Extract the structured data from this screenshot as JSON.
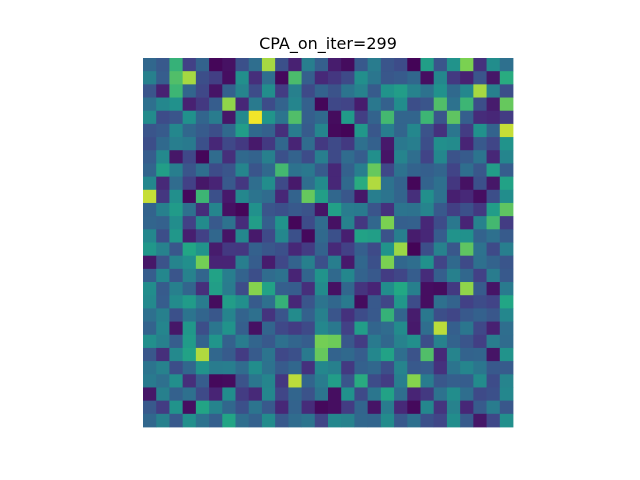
{
  "chart_data": {
    "type": "heatmap",
    "title": "CPA_on_iter=299",
    "colormap": "viridis",
    "rows": 28,
    "cols": 28,
    "axes_visible": false,
    "value_range": [
      0,
      1
    ],
    "values": [
      [
        0.42,
        0.35,
        0.78,
        0.24,
        0.4,
        0.02,
        0.06,
        0.31,
        0.45,
        0.92,
        0.31,
        0.12,
        0.53,
        0.38,
        0.1,
        0.04,
        0.35,
        0.52,
        0.33,
        0.29,
        0.01,
        0.7,
        0.33,
        0.64,
        0.88,
        0.18,
        0.61,
        0.46
      ],
      [
        0.54,
        0.37,
        0.82,
        0.92,
        0.3,
        0.23,
        0.05,
        0.62,
        0.17,
        0.45,
        0.03,
        0.81,
        0.38,
        0.15,
        0.2,
        0.28,
        0.62,
        0.49,
        0.34,
        0.36,
        0.42,
        0.05,
        0.58,
        0.21,
        0.12,
        0.33,
        0.08,
        0.76
      ],
      [
        0.33,
        0.12,
        0.79,
        0.41,
        0.27,
        0.07,
        0.39,
        0.56,
        0.29,
        0.61,
        0.22,
        0.54,
        0.28,
        0.4,
        0.32,
        0.48,
        0.55,
        0.36,
        0.64,
        0.69,
        0.55,
        0.47,
        0.63,
        0.43,
        0.58,
        0.92,
        0.54,
        0.3
      ],
      [
        0.46,
        0.58,
        0.63,
        0.12,
        0.21,
        0.37,
        0.9,
        0.14,
        0.51,
        0.29,
        0.4,
        0.57,
        0.39,
        0.02,
        0.27,
        0.25,
        0.1,
        0.5,
        0.39,
        0.61,
        0.3,
        0.33,
        0.82,
        0.47,
        0.79,
        0.3,
        0.1,
        0.85
      ],
      [
        0.6,
        0.29,
        0.33,
        0.63,
        0.41,
        0.52,
        0.08,
        0.59,
        0.99,
        0.65,
        0.48,
        0.82,
        0.38,
        0.43,
        0.04,
        0.68,
        0.23,
        0.4,
        0.8,
        0.41,
        0.41,
        0.79,
        0.33,
        0.84,
        0.38,
        0.16,
        0.14,
        0.22
      ],
      [
        0.33,
        0.36,
        0.58,
        0.42,
        0.36,
        0.3,
        0.43,
        0.69,
        0.43,
        0.39,
        0.17,
        0.52,
        0.36,
        0.57,
        0.03,
        0.01,
        0.66,
        0.34,
        0.53,
        0.41,
        0.58,
        0.32,
        0.18,
        0.49,
        0.22,
        0.63,
        0.4,
        0.95
      ],
      [
        0.3,
        0.43,
        0.53,
        0.51,
        0.31,
        0.14,
        0.27,
        0.21,
        0.09,
        0.21,
        0.42,
        0.13,
        0.44,
        0.21,
        0.28,
        0.21,
        0.46,
        0.39,
        0.09,
        0.5,
        0.53,
        0.3,
        0.62,
        0.6,
        0.13,
        0.35,
        0.26,
        0.64
      ],
      [
        0.37,
        0.59,
        0.08,
        0.27,
        0.02,
        0.44,
        0.17,
        0.43,
        0.4,
        0.54,
        0.31,
        0.4,
        0.29,
        0.53,
        0.28,
        0.44,
        0.37,
        0.62,
        0.07,
        0.56,
        0.45,
        0.25,
        0.58,
        0.32,
        0.36,
        0.48,
        0.14,
        0.57
      ],
      [
        0.41,
        0.7,
        0.53,
        0.33,
        0.45,
        0.29,
        0.33,
        0.57,
        0.33,
        0.43,
        0.8,
        0.47,
        0.5,
        0.36,
        0.14,
        0.39,
        0.53,
        0.85,
        0.27,
        0.47,
        0.4,
        0.38,
        0.41,
        0.25,
        0.45,
        0.34,
        0.69,
        0.37
      ],
      [
        0.58,
        0.15,
        0.44,
        0.24,
        0.08,
        0.13,
        0.35,
        0.2,
        0.45,
        0.61,
        0.28,
        0.09,
        0.45,
        0.6,
        0.14,
        0.43,
        0.76,
        0.93,
        0.47,
        0.4,
        0.02,
        0.4,
        0.46,
        0.2,
        0.06,
        0.31,
        0.08,
        0.72
      ],
      [
        0.95,
        0.2,
        0.62,
        0.03,
        0.79,
        0.31,
        0.09,
        0.58,
        0.48,
        0.44,
        0.14,
        0.4,
        0.85,
        0.7,
        0.42,
        0.34,
        0.08,
        0.53,
        0.48,
        0.41,
        0.17,
        0.62,
        0.47,
        0.11,
        0.15,
        0.05,
        0.3,
        0.61
      ],
      [
        0.4,
        0.54,
        0.68,
        0.46,
        0.16,
        0.57,
        0.06,
        0.02,
        0.63,
        0.33,
        0.31,
        0.35,
        0.32,
        0.07,
        0.71,
        0.52,
        0.51,
        0.33,
        0.18,
        0.48,
        0.47,
        0.56,
        0.35,
        0.23,
        0.31,
        0.21,
        0.69,
        0.84
      ],
      [
        0.41,
        0.39,
        0.61,
        0.24,
        0.6,
        0.35,
        0.47,
        0.16,
        0.69,
        0.38,
        0.64,
        0.02,
        0.29,
        0.44,
        0.06,
        0.55,
        0.2,
        0.42,
        0.88,
        0.38,
        0.39,
        0.14,
        0.29,
        0.5,
        0.13,
        0.55,
        0.8,
        0.22
      ],
      [
        0.58,
        0.3,
        0.66,
        0.11,
        0.24,
        0.42,
        0.07,
        0.58,
        0.09,
        0.28,
        0.58,
        0.31,
        0.03,
        0.43,
        0.31,
        0.11,
        0.72,
        0.7,
        0.32,
        0.53,
        0.1,
        0.14,
        0.37,
        0.64,
        0.63,
        0.4,
        0.46,
        0.36
      ],
      [
        0.66,
        0.55,
        0.34,
        0.74,
        0.64,
        0.1,
        0.21,
        0.2,
        0.39,
        0.34,
        0.31,
        0.14,
        0.22,
        0.4,
        0.15,
        0.24,
        0.38,
        0.28,
        0.64,
        0.91,
        0.01,
        0.3,
        0.55,
        0.34,
        0.84,
        0.47,
        0.28,
        0.53
      ],
      [
        0.08,
        0.32,
        0.56,
        0.62,
        0.87,
        0.13,
        0.13,
        0.53,
        0.37,
        0.1,
        0.27,
        0.4,
        0.54,
        0.31,
        0.53,
        0.09,
        0.42,
        0.31,
        0.88,
        0.42,
        0.45,
        0.63,
        0.25,
        0.43,
        0.28,
        0.46,
        0.4,
        0.33
      ],
      [
        0.37,
        0.58,
        0.33,
        0.55,
        0.41,
        0.72,
        0.53,
        0.4,
        0.3,
        0.44,
        0.47,
        0.13,
        0.41,
        0.64,
        0.43,
        0.58,
        0.4,
        0.35,
        0.22,
        0.26,
        0.37,
        0.16,
        0.38,
        0.54,
        0.42,
        0.24,
        0.52,
        0.35
      ],
      [
        0.61,
        0.36,
        0.54,
        0.41,
        0.17,
        0.7,
        0.52,
        0.29,
        0.89,
        0.72,
        0.38,
        0.37,
        0.17,
        0.6,
        0.06,
        0.42,
        0.19,
        0.13,
        0.61,
        0.75,
        0.54,
        0.05,
        0.04,
        0.21,
        0.9,
        0.36,
        0.07,
        0.51
      ],
      [
        0.59,
        0.37,
        0.6,
        0.68,
        0.52,
        0.04,
        0.69,
        0.62,
        0.36,
        0.46,
        0.78,
        0.14,
        0.33,
        0.48,
        0.42,
        0.51,
        0.04,
        0.35,
        0.26,
        0.66,
        0.29,
        0.05,
        0.46,
        0.4,
        0.24,
        0.29,
        0.25,
        0.74
      ],
      [
        0.46,
        0.54,
        0.31,
        0.48,
        0.41,
        0.34,
        0.56,
        0.4,
        0.46,
        0.19,
        0.33,
        0.6,
        0.39,
        0.54,
        0.33,
        0.18,
        0.29,
        0.35,
        0.78,
        0.41,
        0.1,
        0.5,
        0.3,
        0.26,
        0.35,
        0.39,
        0.34,
        0.58
      ],
      [
        0.4,
        0.57,
        0.08,
        0.66,
        0.3,
        0.49,
        0.64,
        0.38,
        0.06,
        0.41,
        0.27,
        0.22,
        0.28,
        0.58,
        0.5,
        0.24,
        0.69,
        0.41,
        0.44,
        0.6,
        0.09,
        0.45,
        0.94,
        0.38,
        0.49,
        0.27,
        0.12,
        0.45
      ],
      [
        0.62,
        0.54,
        0.37,
        0.68,
        0.4,
        0.65,
        0.39,
        0.52,
        0.41,
        0.35,
        0.46,
        0.41,
        0.37,
        0.87,
        0.86,
        0.34,
        0.22,
        0.51,
        0.42,
        0.55,
        0.62,
        0.3,
        0.55,
        0.4,
        0.33,
        0.23,
        0.52,
        0.44
      ],
      [
        0.34,
        0.17,
        0.59,
        0.72,
        0.93,
        0.42,
        0.36,
        0.22,
        0.36,
        0.48,
        0.27,
        0.31,
        0.51,
        0.85,
        0.4,
        0.43,
        0.37,
        0.58,
        0.72,
        0.45,
        0.32,
        0.82,
        0.15,
        0.56,
        0.4,
        0.41,
        0.07,
        0.64
      ],
      [
        0.48,
        0.55,
        0.3,
        0.42,
        0.64,
        0.52,
        0.53,
        0.44,
        0.61,
        0.47,
        0.36,
        0.42,
        0.18,
        0.58,
        0.54,
        0.21,
        0.39,
        0.42,
        0.3,
        0.56,
        0.35,
        0.37,
        0.18,
        0.48,
        0.57,
        0.49,
        0.35,
        0.36
      ],
      [
        0.51,
        0.46,
        0.62,
        0.17,
        0.37,
        0.03,
        0.04,
        0.32,
        0.49,
        0.57,
        0.2,
        0.94,
        0.41,
        0.52,
        0.69,
        0.33,
        0.76,
        0.29,
        0.22,
        0.53,
        0.89,
        0.52,
        0.34,
        0.38,
        0.37,
        0.6,
        0.29,
        0.56
      ],
      [
        0.08,
        0.54,
        0.39,
        0.46,
        0.28,
        0.13,
        0.61,
        0.22,
        0.15,
        0.58,
        0.26,
        0.41,
        0.32,
        0.48,
        0.05,
        0.63,
        0.28,
        0.49,
        0.72,
        0.45,
        0.13,
        0.21,
        0.47,
        0.61,
        0.45,
        0.28,
        0.31,
        0.58
      ],
      [
        0.35,
        0.22,
        0.64,
        0.05,
        0.73,
        0.56,
        0.42,
        0.31,
        0.48,
        0.35,
        0.14,
        0.4,
        0.16,
        0.03,
        0.05,
        0.22,
        0.41,
        0.07,
        0.52,
        0.15,
        0.03,
        0.58,
        0.19,
        0.55,
        0.14,
        0.36,
        0.52,
        0.34
      ],
      [
        0.42,
        0.54,
        0.35,
        0.62,
        0.47,
        0.38,
        0.73,
        0.45,
        0.39,
        0.6,
        0.35,
        0.44,
        0.48,
        0.26,
        0.58,
        0.55,
        0.42,
        0.41,
        0.6,
        0.35,
        0.46,
        0.31,
        0.26,
        0.61,
        0.36,
        0.08,
        0.27,
        0.62
      ]
    ]
  }
}
